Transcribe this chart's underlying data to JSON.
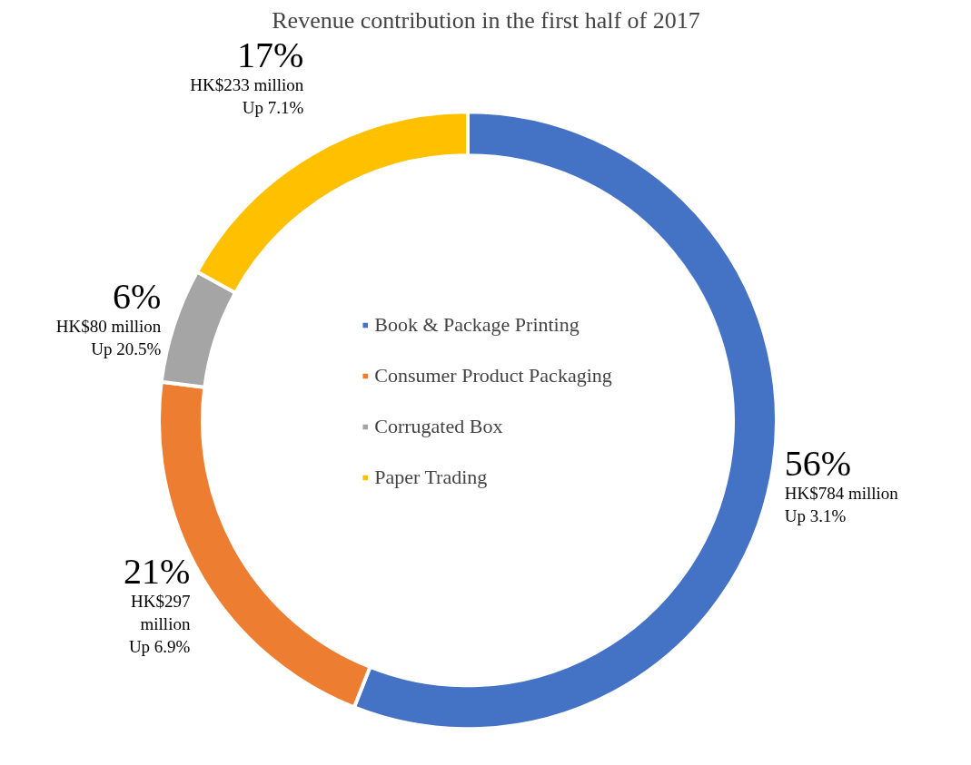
{
  "chart_data": {
    "type": "donut",
    "title": "Revenue contribution in the first half of 2017",
    "categories": [
      "Book & Package Printing",
      "Consumer Product Packaging",
      "Corrugated Box",
      "Paper Trading"
    ],
    "values": [
      56,
      21,
      6,
      17
    ],
    "colors": [
      "#4472c4",
      "#ed7d31",
      "#a5a5a5",
      "#ffc000"
    ],
    "value_labels": [
      "56%\nHK$784 million\nUp 3.1%",
      "21%\nHK$297\nmillion\nUp 6.9%",
      "6%\nHK$80 million\nUp 20.5%",
      "17%\nHK$233 million\nUp 7.1%"
    ],
    "legend": "center"
  }
}
